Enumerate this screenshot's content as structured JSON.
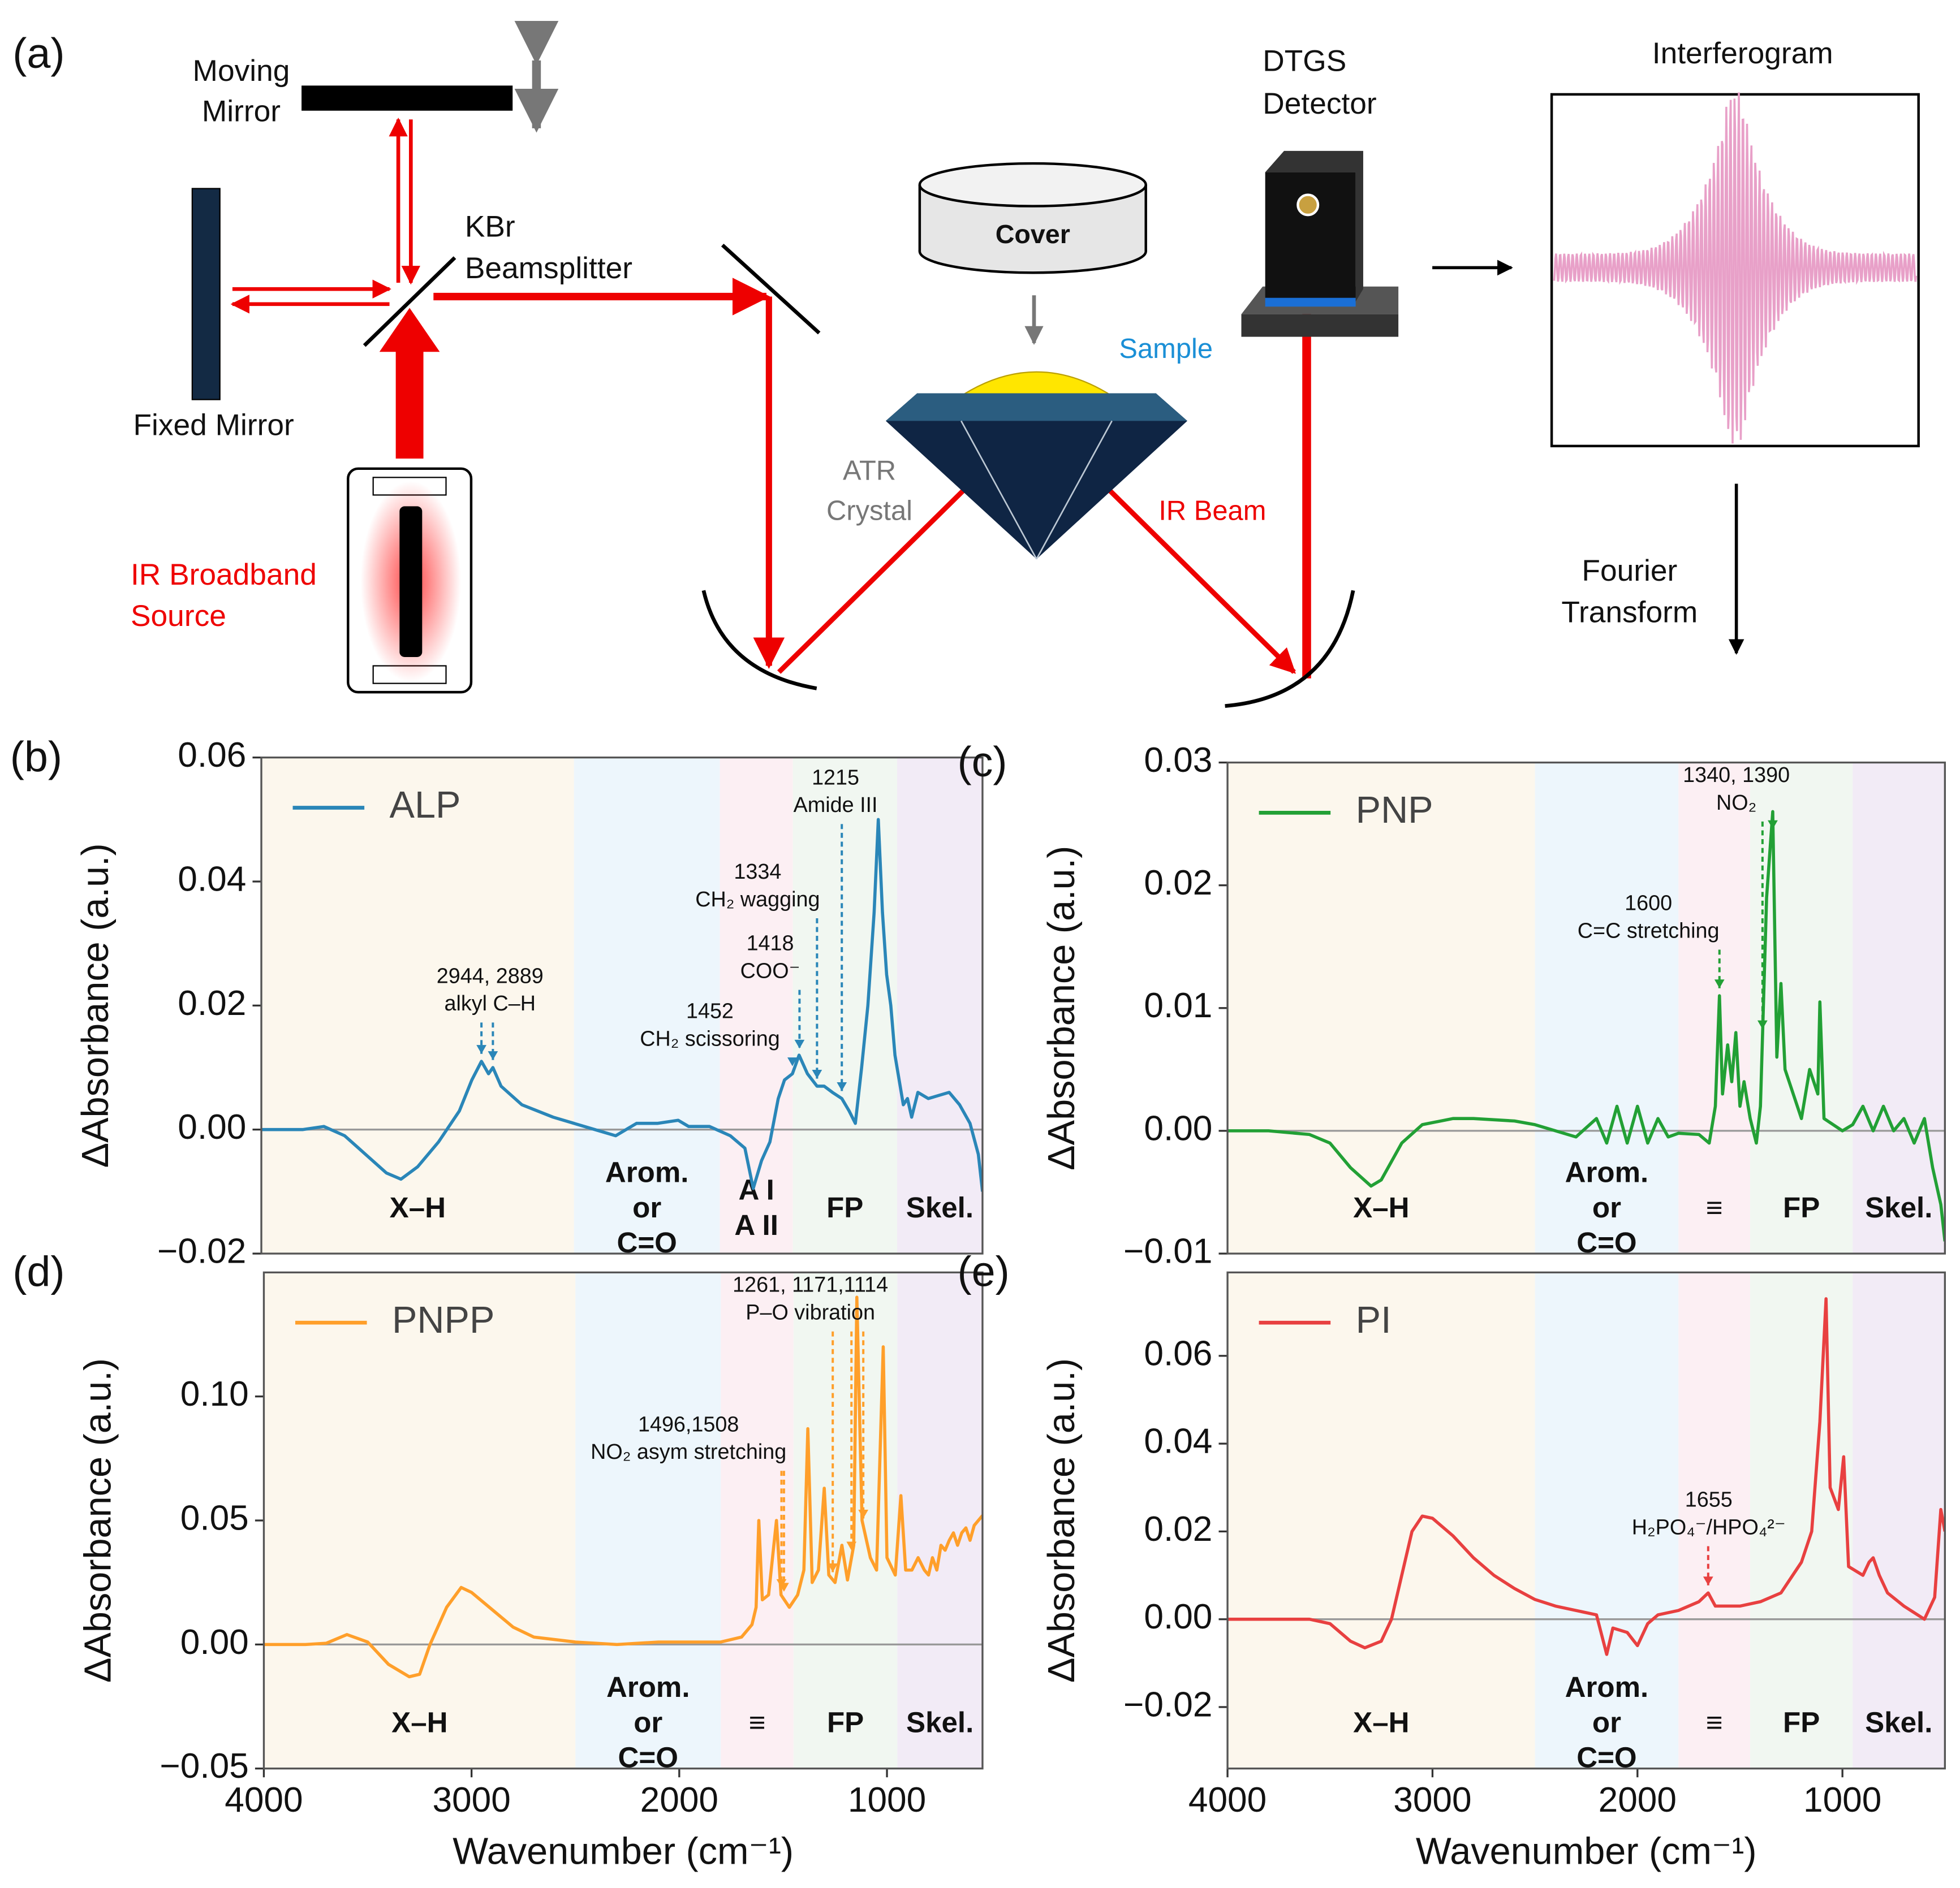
{
  "diagram": {
    "label": "(a)",
    "moving_mirror": [
      "Moving",
      "Mirror"
    ],
    "fixed_mirror": "Fixed Mirror",
    "beamsplitter": [
      "KBr",
      "Beamsplitter"
    ],
    "source": [
      "IR Broadband",
      "Source"
    ],
    "cover": "Cover",
    "sample": "Sample",
    "crystal": [
      "ATR",
      "Crystal"
    ],
    "beam": "IR Beam",
    "detector": [
      "DTGS",
      "Detector"
    ],
    "interferogram": "Interferogram",
    "fourier": [
      "Fourier",
      "Transform"
    ]
  },
  "chart_data": [
    {
      "type": "line",
      "panel": "(b)",
      "ylabel": "ΔAbsorbance (a.u.)",
      "xlim": [
        4000,
        540
      ],
      "ylim": [
        -0.02,
        0.06
      ],
      "yticks": [
        {
          "value": -0.02,
          "label": "−0.02"
        },
        {
          "value": 0,
          "label": "0.00"
        },
        0.02,
        0.04,
        0.06
      ],
      "legend": "upper left",
      "zero_line": true,
      "x": [
        4000,
        3800,
        3700,
        3600,
        3500,
        3400,
        3330,
        3250,
        3150,
        3050,
        2990,
        2944,
        2910,
        2889,
        2850,
        2750,
        2600,
        2500,
        2400,
        2300,
        2200,
        2100,
        2000,
        1950,
        1850,
        1750,
        1680,
        1640,
        1600,
        1560,
        1520,
        1490,
        1452,
        1420,
        1380,
        1334,
        1300,
        1260,
        1215,
        1180,
        1150,
        1120,
        1090,
        1060,
        1040,
        1020,
        1000,
        980,
        960,
        940,
        920,
        900,
        880,
        850,
        800,
        700,
        650,
        600,
        560,
        540
      ],
      "series": [
        {
          "name": "ALP",
          "color": "#2a86b8",
          "values": [
            0,
            0,
            0.0005,
            -0.001,
            -0.004,
            -0.007,
            -0.008,
            -0.006,
            -0.002,
            0.003,
            0.008,
            0.011,
            0.009,
            0.01,
            0.007,
            0.004,
            0.002,
            0.001,
            0,
            -0.001,
            0.001,
            0.001,
            0.0015,
            0.0005,
            0.0005,
            -0.001,
            -0.003,
            -0.0095,
            -0.005,
            -0.002,
            0.005,
            0.008,
            0.009,
            0.012,
            0.009,
            0.007,
            0.007,
            0.006,
            0.005,
            0.003,
            0.001,
            0.01,
            0.02,
            0.035,
            0.05,
            0.035,
            0.025,
            0.02,
            0.012,
            0.008,
            0.004,
            0.005,
            0.002,
            0.006,
            0.005,
            0.006,
            0.004,
            0.001,
            -0.004,
            -0.01
          ]
        }
      ],
      "regions": [
        {
          "label": [
            "X–H"
          ],
          "from": 4000,
          "to": 2500,
          "color": "#fbf6ea"
        },
        {
          "label": [
            "Arom.",
            "or",
            "C=O"
          ],
          "from": 2500,
          "to": 1800,
          "color": "#eaf4fb"
        },
        {
          "label": [
            "A I",
            "A II"
          ],
          "from": 1800,
          "to": 1450,
          "color": "#fcecf1"
        },
        {
          "label": [
            "FP"
          ],
          "from": 1450,
          "to": 950,
          "color": "#eef6ee"
        },
        {
          "label": [
            "Skel."
          ],
          "from": 950,
          "to": 540,
          "color": "#f0e8f5"
        }
      ],
      "annotations": [
        {
          "lines": [
            "2944, 2889",
            "alkyl C–H"
          ],
          "x": [
            2944,
            2889
          ]
        },
        {
          "lines": [
            "1452",
            "CH₂ scissoring"
          ],
          "x": [
            1452
          ]
        },
        {
          "lines": [
            "1418",
            "COO⁻"
          ],
          "x": [
            1418
          ]
        },
        {
          "lines": [
            "1334",
            "CH₂ wagging"
          ],
          "x": [
            1334
          ]
        },
        {
          "lines": [
            "1215",
            "Amide III"
          ],
          "x": [
            1215
          ]
        }
      ]
    },
    {
      "type": "line",
      "panel": "(c)",
      "ylabel": "ΔAbsorbance (a.u.)",
      "xlim": [
        4000,
        500
      ],
      "ylim": [
        -0.01,
        0.03
      ],
      "yticks": [
        {
          "value": -0.01,
          "label": "−0.01"
        },
        {
          "value": 0,
          "label": "0.00"
        },
        0.01,
        0.02,
        0.03
      ],
      "legend": "upper left",
      "zero_line": true,
      "x": [
        4000,
        3800,
        3600,
        3500,
        3400,
        3300,
        3250,
        3150,
        3050,
        2900,
        2800,
        2600,
        2500,
        2400,
        2300,
        2200,
        2150,
        2100,
        2050,
        2000,
        1950,
        1900,
        1850,
        1800,
        1700,
        1650,
        1620,
        1600,
        1585,
        1560,
        1540,
        1520,
        1500,
        1480,
        1450,
        1420,
        1400,
        1370,
        1340,
        1320,
        1300,
        1280,
        1260,
        1240,
        1200,
        1160,
        1120,
        1110,
        1090,
        1000,
        950,
        900,
        850,
        800,
        750,
        700,
        650,
        600,
        560,
        520,
        500
      ],
      "series": [
        {
          "name": "PNP",
          "color": "#22a035",
          "values": [
            0,
            0,
            -0.0003,
            -0.001,
            -0.003,
            -0.0045,
            -0.004,
            -0.001,
            0.0005,
            0.001,
            0.001,
            0.0008,
            0.0005,
            0,
            -0.0005,
            0.001,
            -0.001,
            0.002,
            -0.001,
            0.002,
            -0.001,
            0.001,
            -0.0005,
            -0.0002,
            -0.0003,
            -0.001,
            0.002,
            0.011,
            0.003,
            0.007,
            0.004,
            0.008,
            0.002,
            0.004,
            0.001,
            -0.001,
            0.002,
            0.019,
            0.026,
            0.006,
            0.012,
            0.005,
            0.004,
            0.003,
            0.001,
            0.005,
            0.003,
            0.0105,
            0.001,
            0,
            0.0005,
            0.002,
            0,
            0.002,
            0,
            0.001,
            -0.001,
            0.001,
            -0.003,
            -0.006,
            -0.009
          ]
        }
      ],
      "regions": [
        {
          "label": [
            "X–H"
          ],
          "from": 4000,
          "to": 2500,
          "color": "#fbf6ea"
        },
        {
          "label": [
            "Arom.",
            "or",
            "C=O"
          ],
          "from": 2500,
          "to": 1800,
          "color": "#eaf4fb"
        },
        {
          "label": [
            "≡"
          ],
          "from": 1800,
          "to": 1450,
          "color": "#fcecf1"
        },
        {
          "label": [
            "FP"
          ],
          "from": 1450,
          "to": 950,
          "color": "#eef6ee"
        },
        {
          "label": [
            "Skel."
          ],
          "from": 950,
          "to": 500,
          "color": "#f0e8f5"
        }
      ],
      "annotations": [
        {
          "lines": [
            "1340, 1390",
            "NO₂"
          ],
          "x": [
            1340,
            1390
          ]
        },
        {
          "lines": [
            "1600",
            "C=C stretching"
          ],
          "x": [
            1600
          ]
        }
      ]
    },
    {
      "type": "line",
      "panel": "(d)",
      "ylabel": "ΔAbsorbance (a.u.)",
      "xlabel": "Wavenumber (cm⁻¹)",
      "xlim": [
        4000,
        540
      ],
      "ylim": [
        -0.05,
        0.15
      ],
      "xticks": [
        4000,
        3000,
        2000,
        1000
      ],
      "yticks": [
        {
          "value": -0.05,
          "label": "−0.05"
        },
        {
          "value": 0,
          "label": "0.00"
        },
        0.05,
        {
          "value": 0.1,
          "label": "0.10"
        }
      ],
      "legend": "upper left",
      "zero_line": true,
      "x": [
        4000,
        3800,
        3700,
        3600,
        3500,
        3400,
        3300,
        3250,
        3200,
        3120,
        3050,
        3000,
        2900,
        2800,
        2700,
        2500,
        2300,
        2100,
        2000,
        1800,
        1700,
        1650,
        1630,
        1617,
        1600,
        1570,
        1532,
        1510,
        1470,
        1430,
        1400,
        1381,
        1360,
        1330,
        1302,
        1280,
        1250,
        1217,
        1190,
        1160,
        1145,
        1120,
        1080,
        1050,
        1018,
        1000,
        960,
        933,
        910,
        880,
        850,
        820,
        800,
        781,
        760,
        740,
        720,
        700,
        680,
        660,
        640,
        620,
        600,
        580,
        560,
        540
      ],
      "series": [
        {
          "name": "PNPP",
          "color": "#ff9f2a",
          "values": [
            0,
            0,
            0.0005,
            0.004,
            0.001,
            -0.008,
            -0.013,
            -0.012,
            0,
            0.015,
            0.023,
            0.021,
            0.014,
            0.007,
            0.003,
            0.001,
            0,
            0.001,
            0.001,
            0.001,
            0.003,
            0.008,
            0.015,
            0.05,
            0.018,
            0.02,
            0.05,
            0.02,
            0.015,
            0.02,
            0.03,
            0.087,
            0.025,
            0.03,
            0.063,
            0.028,
            0.025,
            0.04,
            0.026,
            0.04,
            0.14,
            0.05,
            0.035,
            0.03,
            0.12,
            0.035,
            0.028,
            0.06,
            0.03,
            0.03,
            0.035,
            0.03,
            0.028,
            0.035,
            0.03,
            0.04,
            0.038,
            0.042,
            0.045,
            0.04,
            0.045,
            0.047,
            0.042,
            0.048,
            0.05,
            0.052
          ]
        }
      ],
      "regions": [
        {
          "label": [
            "X–H"
          ],
          "from": 4000,
          "to": 2500,
          "color": "#fbf6ea"
        },
        {
          "label": [
            "Arom.",
            "or",
            "C=O"
          ],
          "from": 2500,
          "to": 1800,
          "color": "#eaf4fb"
        },
        {
          "label": [
            "≡"
          ],
          "from": 1800,
          "to": 1450,
          "color": "#fcecf1"
        },
        {
          "label": [
            "FP"
          ],
          "from": 1450,
          "to": 950,
          "color": "#eef6ee"
        },
        {
          "label": [
            "Skel."
          ],
          "from": 950,
          "to": 540,
          "color": "#f0e8f5"
        }
      ],
      "annotations": [
        {
          "lines": [
            "1261, 1171,1114",
            "P–O vibration"
          ],
          "x": [
            1261,
            1171,
            1114
          ]
        },
        {
          "lines": [
            "1496,1508",
            "NO₂ asym stretching"
          ],
          "x": [
            1496,
            1508
          ]
        }
      ]
    },
    {
      "type": "line",
      "panel": "(e)",
      "ylabel": "ΔAbsorbance (a.u.)",
      "xlabel": "Wavenumber (cm⁻¹)",
      "xlim": [
        4000,
        500
      ],
      "ylim": [
        -0.034,
        0.079
      ],
      "xticks": [
        4000,
        3000,
        2000,
        1000
      ],
      "yticks": [
        {
          "value": -0.02,
          "label": "−0.02"
        },
        {
          "value": 0,
          "label": "0.00"
        },
        0.02,
        0.04,
        0.06
      ],
      "legend": "upper left",
      "zero_line": true,
      "x": [
        4000,
        3800,
        3600,
        3500,
        3400,
        3330,
        3250,
        3200,
        3150,
        3100,
        3050,
        3000,
        2900,
        2800,
        2700,
        2600,
        2500,
        2400,
        2300,
        2200,
        2150,
        2120,
        2050,
        2000,
        1950,
        1900,
        1800,
        1700,
        1655,
        1620,
        1500,
        1400,
        1300,
        1200,
        1150,
        1110,
        1080,
        1060,
        1020,
        994,
        970,
        900,
        870,
        850,
        820,
        780,
        700,
        600,
        550,
        520,
        500
      ],
      "series": [
        {
          "name": "PI",
          "color": "#e84040",
          "values": [
            0,
            0,
            0,
            -0.001,
            -0.005,
            -0.0065,
            -0.005,
            0,
            0.01,
            0.02,
            0.0235,
            0.023,
            0.019,
            0.014,
            0.01,
            0.007,
            0.0045,
            0.003,
            0.002,
            0.001,
            -0.008,
            -0.002,
            -0.003,
            -0.006,
            -0.001,
            0.001,
            0.002,
            0.004,
            0.006,
            0.003,
            0.003,
            0.004,
            0.006,
            0.013,
            0.02,
            0.045,
            0.073,
            0.03,
            0.025,
            0.037,
            0.012,
            0.01,
            0.013,
            0.014,
            0.01,
            0.006,
            0.003,
            0,
            0.005,
            0.025,
            0.02
          ]
        }
      ],
      "regions": [
        {
          "label": [
            "X–H"
          ],
          "from": 4000,
          "to": 2500,
          "color": "#fbf6ea"
        },
        {
          "label": [
            "Arom.",
            "or",
            "C=O"
          ],
          "from": 2500,
          "to": 1800,
          "color": "#eaf4fb"
        },
        {
          "label": [
            "≡"
          ],
          "from": 1800,
          "to": 1450,
          "color": "#fcecf1"
        },
        {
          "label": [
            "FP"
          ],
          "from": 1450,
          "to": 950,
          "color": "#eef6ee"
        },
        {
          "label": [
            "Skel."
          ],
          "from": 950,
          "to": 500,
          "color": "#f0e8f5"
        }
      ],
      "annotations": [
        {
          "lines": [
            "1655",
            "H₂PO₄⁻/HPO₄²⁻"
          ],
          "x": [
            1655
          ]
        }
      ]
    }
  ]
}
